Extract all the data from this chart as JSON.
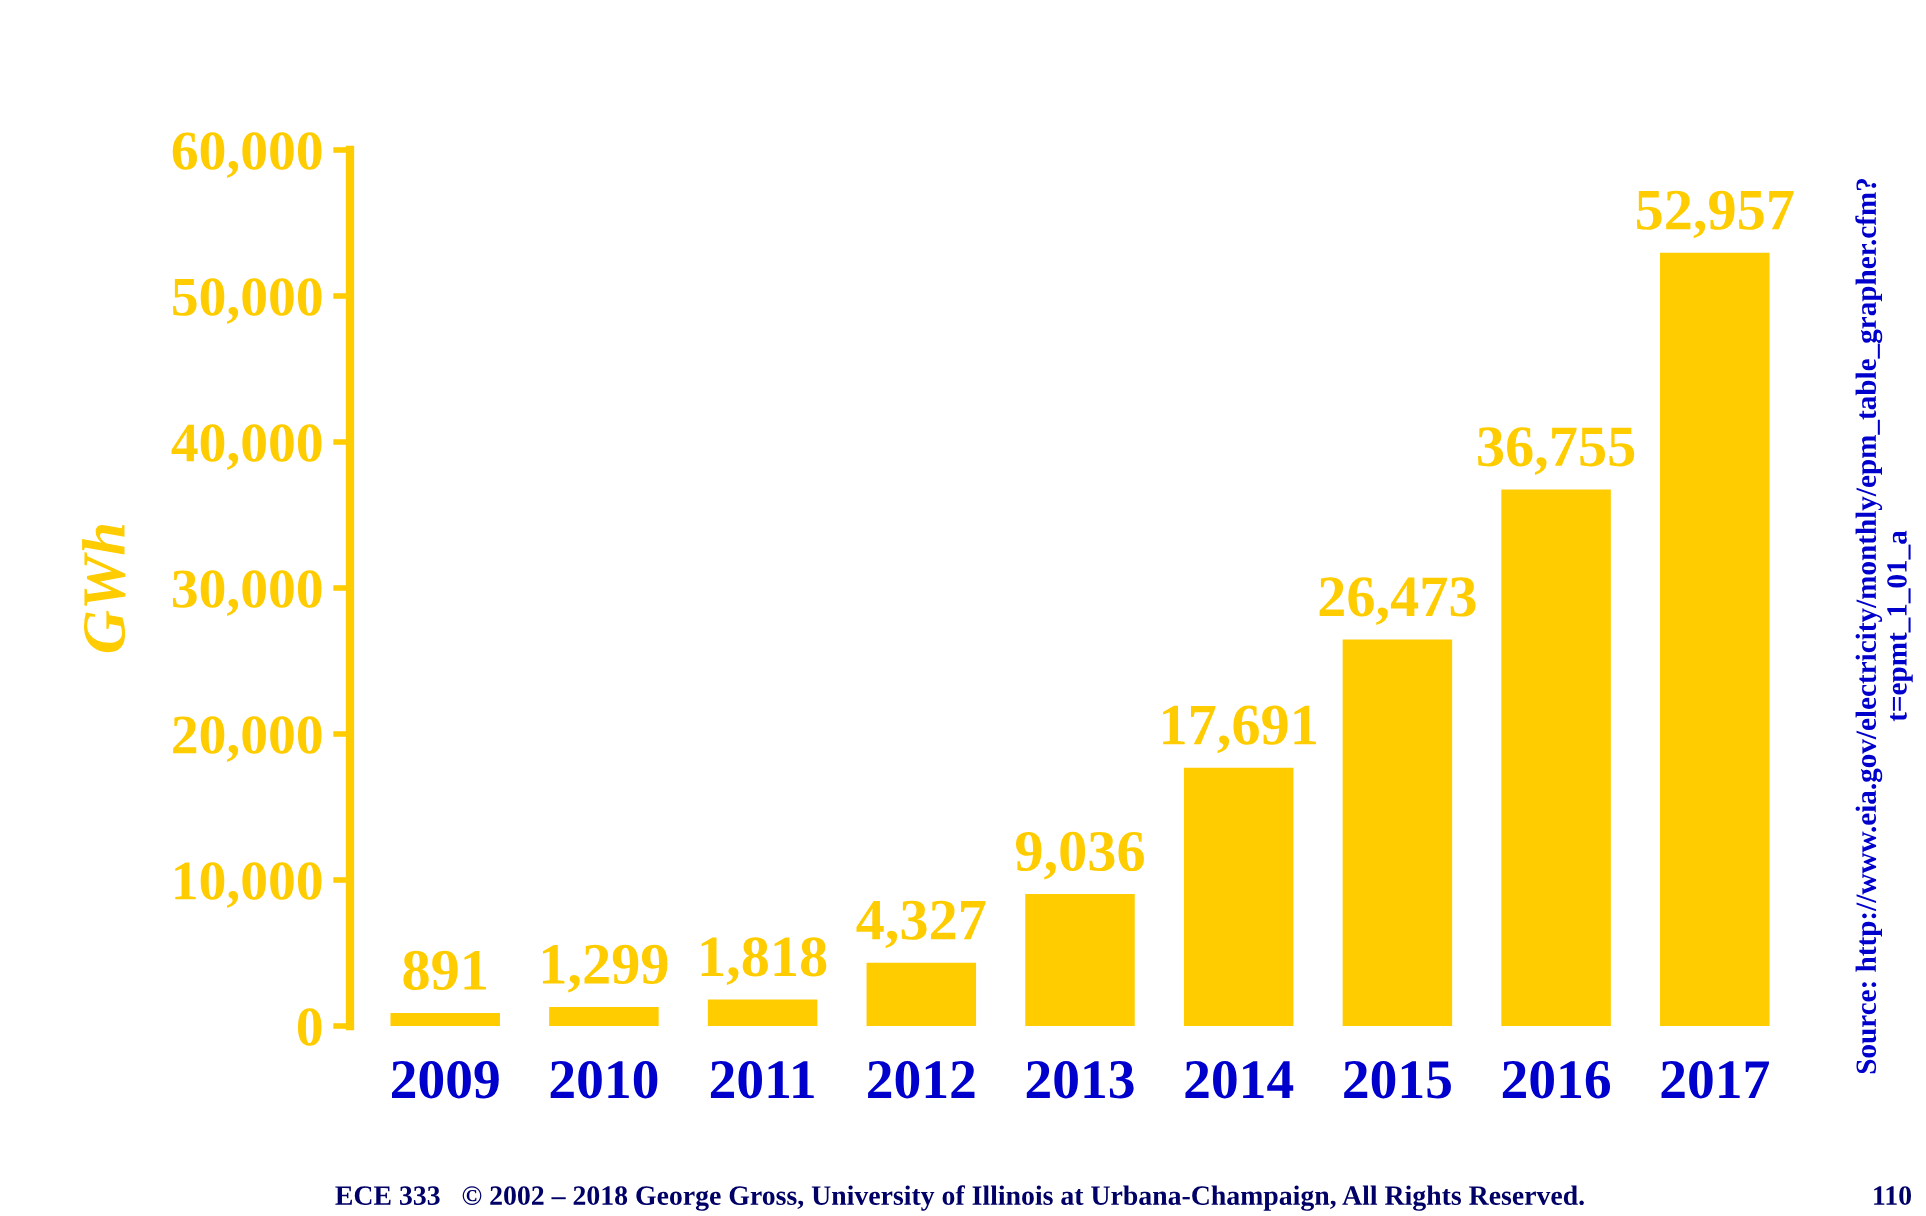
{
  "chart_data": {
    "type": "bar",
    "ylabel": "GWh",
    "categories": [
      "2009",
      "2010",
      "2011",
      "2012",
      "2013",
      "2014",
      "2015",
      "2016",
      "2017"
    ],
    "values": [
      891,
      1299,
      1818,
      4327,
      9036,
      17691,
      26473,
      36755,
      52957
    ],
    "value_labels": [
      "891",
      "1,299",
      "1,818",
      "4,327",
      "9,036",
      "17,691",
      "26,473",
      "36,755",
      "52,957"
    ],
    "color": "#ffcc00",
    "grid": false,
    "legend": false,
    "ylim": [
      0,
      60000
    ],
    "yticks": [
      {
        "value": 0,
        "label": "0"
      },
      {
        "value": 10000,
        "label": "10,000"
      },
      {
        "value": 20000,
        "label": "20,000"
      },
      {
        "value": 30000,
        "label": "30,000"
      },
      {
        "value": 40000,
        "label": "40,000"
      },
      {
        "value": 50000,
        "label": "50,000"
      },
      {
        "value": 60000,
        "label": "60,000"
      }
    ],
    "annotations": [
      "Source: http://www.eia.gov/electricity/monthly/epm_table_grapher.cfm?\nt=epmt_1_01_a",
      "ECE 333   © 2002 – 2018 George Gross, University of Illinois at Urbana-Champaign, All Rights Reserved.",
      "110"
    ]
  }
}
